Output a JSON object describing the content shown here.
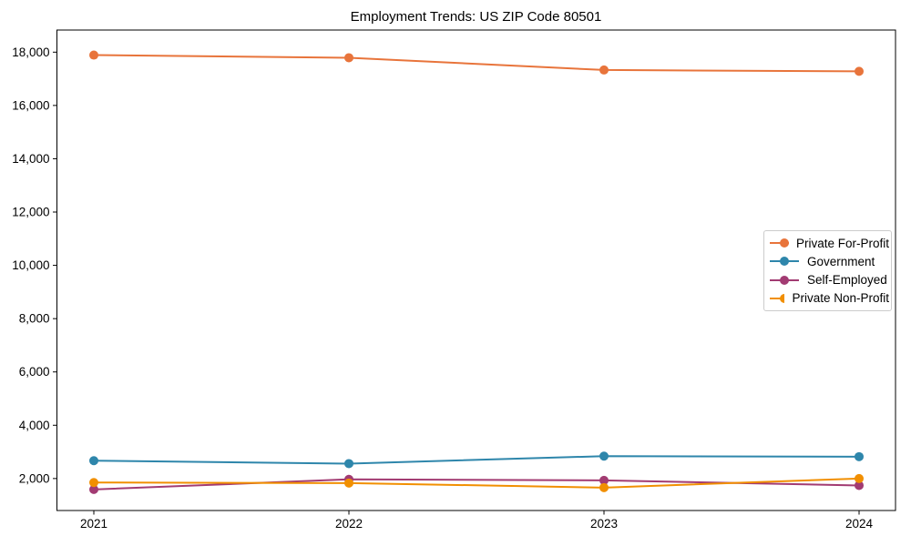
{
  "figure": {
    "title": "Employment Trends: US ZIP Code 80501"
  },
  "chart_data": {
    "type": "line",
    "title": "Employment Trends: US ZIP Code 80501",
    "xlabel": "",
    "ylabel": "",
    "x": [
      2021,
      2022,
      2023,
      2024
    ],
    "ylim": [
      800,
      18830
    ],
    "yticks": [
      2000,
      4000,
      6000,
      8000,
      10000,
      12000,
      14000,
      16000,
      18000
    ],
    "grid": false,
    "legend_position": "center-right",
    "marker": "circle",
    "series": [
      {
        "name": "Private For-Profit",
        "color": "#E8743B",
        "values": [
          17890,
          17790,
          17330,
          17280
        ]
      },
      {
        "name": "Government",
        "color": "#2E86AB",
        "values": [
          2670,
          2560,
          2840,
          2820
        ]
      },
      {
        "name": "Self-Employed",
        "color": "#A23B72",
        "values": [
          1590,
          1970,
          1930,
          1740
        ]
      },
      {
        "name": "Private Non-Profit",
        "color": "#F18F01",
        "values": [
          1850,
          1830,
          1660,
          2000
        ]
      }
    ]
  }
}
